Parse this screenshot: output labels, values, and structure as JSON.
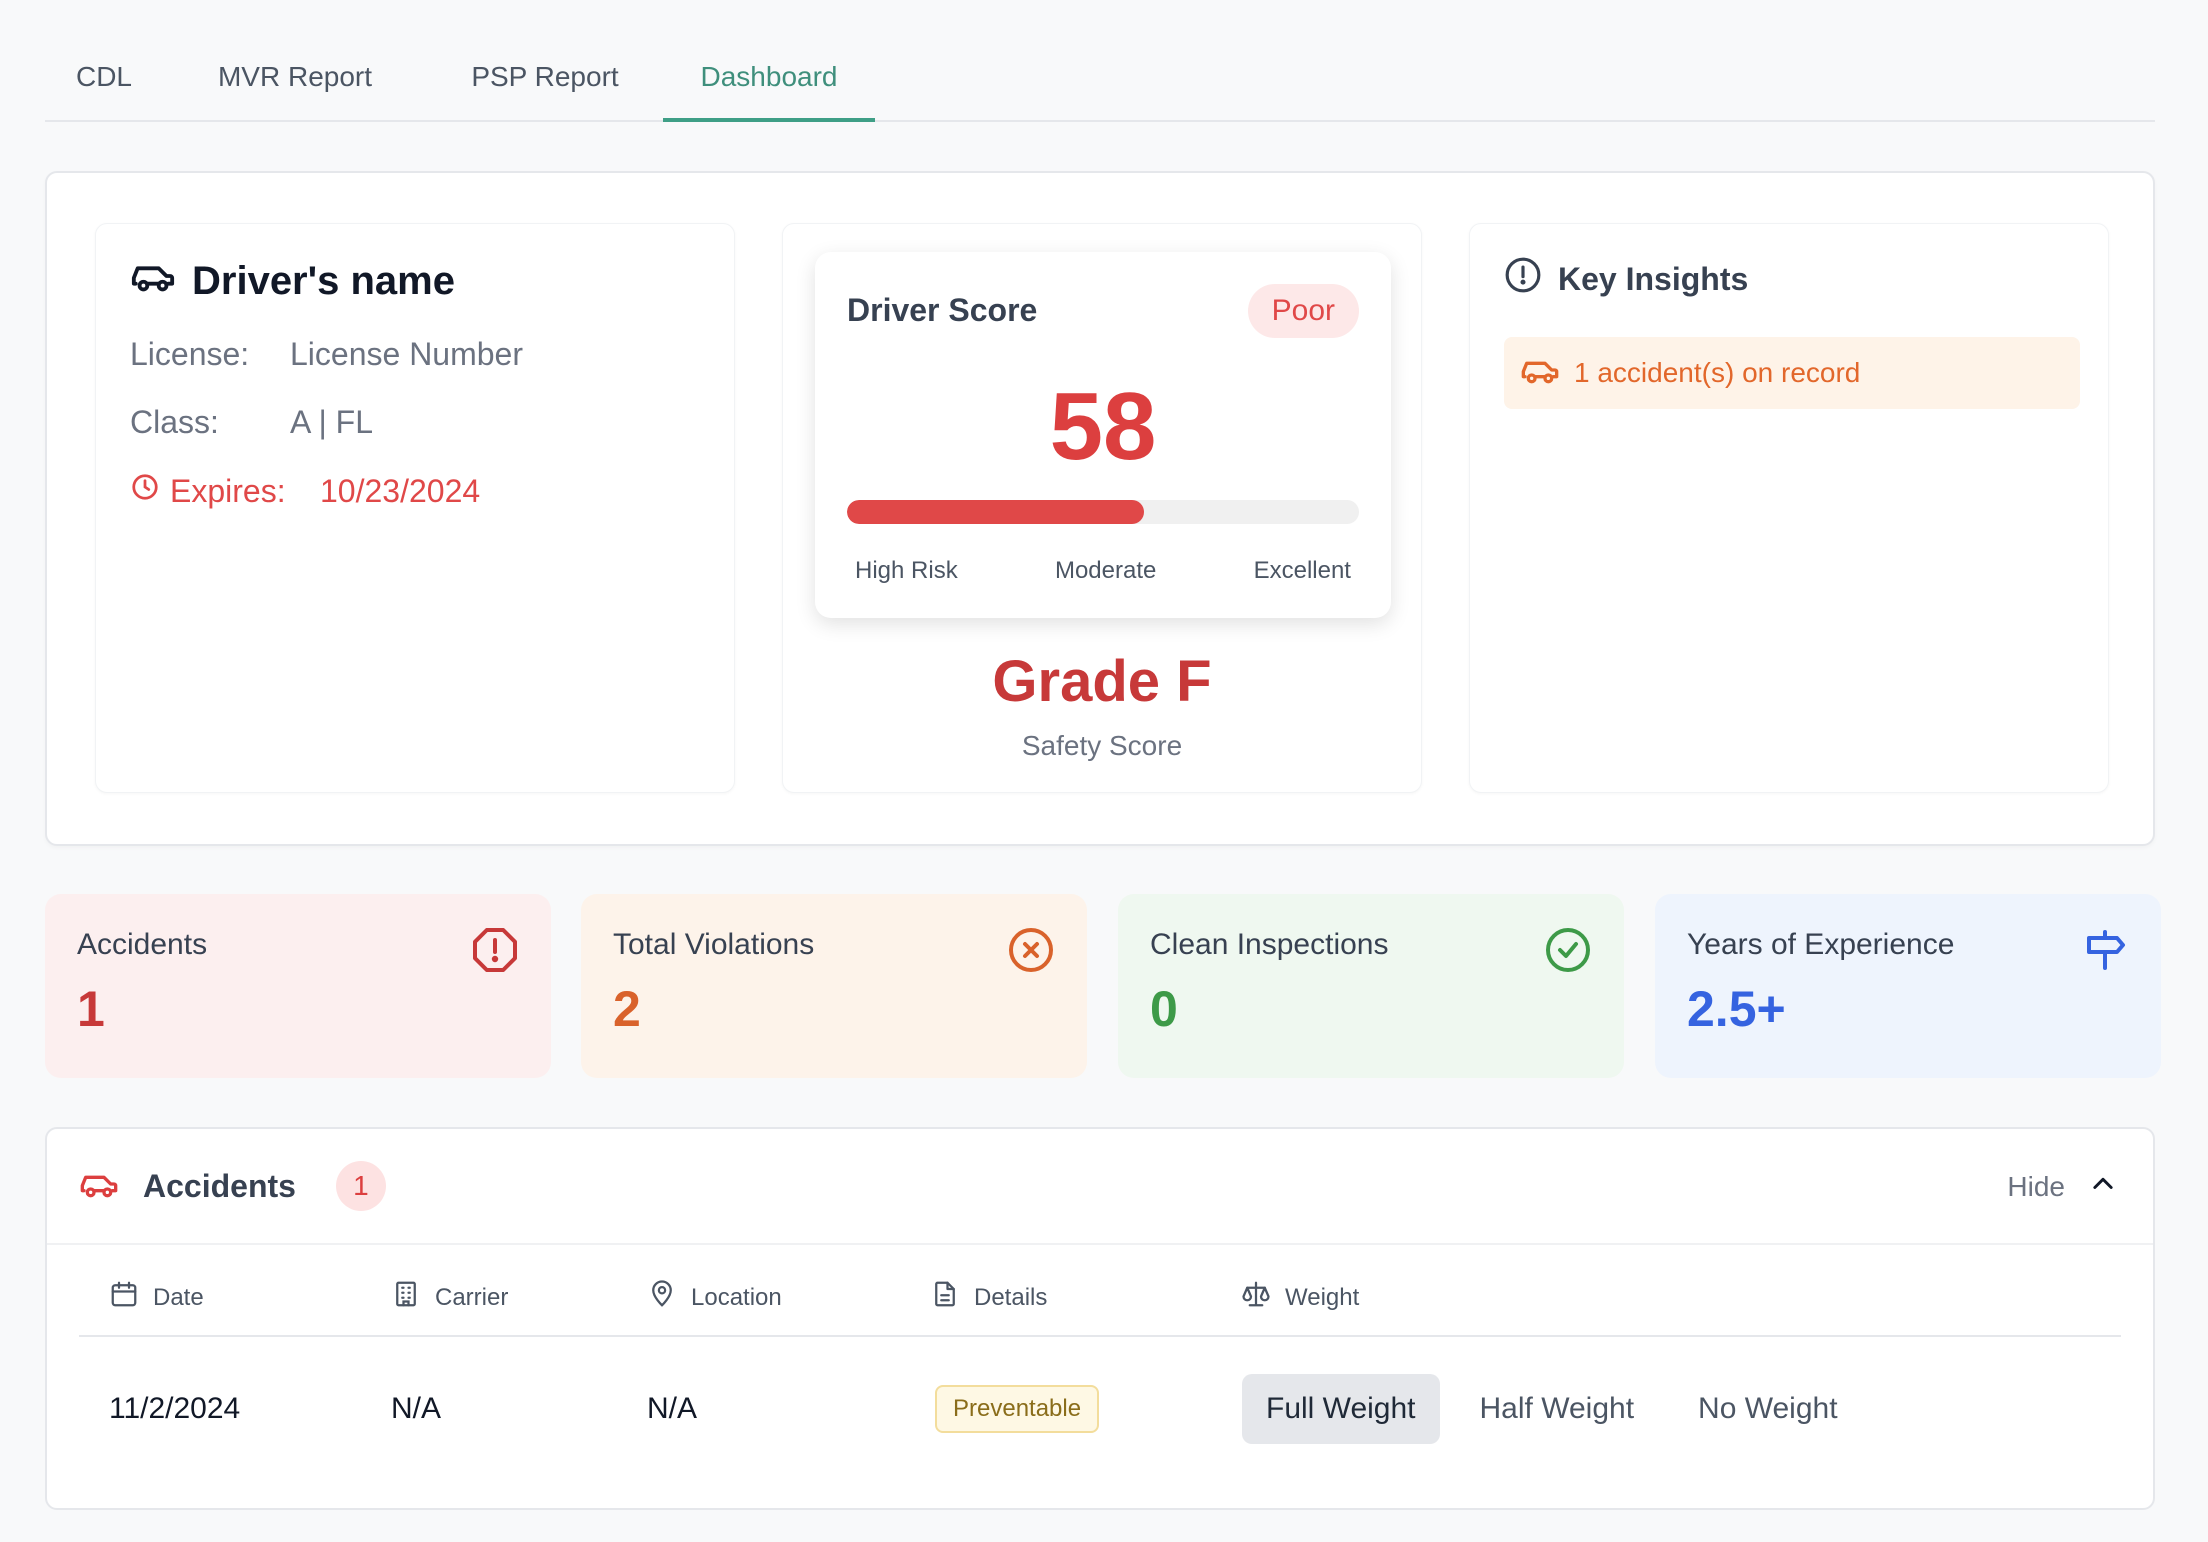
{
  "tabs": [
    {
      "label": "CDL"
    },
    {
      "label": "MVR Report"
    },
    {
      "label": "PSP Report"
    },
    {
      "label": "Dashboard"
    }
  ],
  "active_tab": "Dashboard",
  "driver": {
    "name": "Driver's name",
    "license_label": "License:",
    "license_value": "License Number",
    "class_label": "Class:",
    "class_value": "A | FL",
    "expires_label": "Expires:",
    "expires_value": "10/23/2024",
    "icon": "car-icon"
  },
  "score": {
    "title": "Driver Score",
    "badge": "Poor",
    "value": "58",
    "progress_percent": 58,
    "scale": [
      "High Risk",
      "Moderate",
      "Excellent"
    ],
    "grade": "Grade F",
    "grade_sub": "Safety Score"
  },
  "insights": {
    "title": "Key Insights",
    "items": [
      {
        "text": "1 accident(s) on record",
        "icon": "car-icon"
      }
    ]
  },
  "stats": [
    {
      "label": "Accidents",
      "value": "1",
      "icon": "alert-octagon-icon",
      "color": "#c73939"
    },
    {
      "label": "Total Violations",
      "value": "2",
      "icon": "x-circle-icon",
      "color": "#d9622b"
    },
    {
      "label": "Clean Inspections",
      "value": "0",
      "icon": "check-circle-icon",
      "color": "#3d9a48"
    },
    {
      "label": "Years of Experience",
      "value": "2.5+",
      "icon": "signpost-icon",
      "color": "#3563e0"
    }
  ],
  "accidents": {
    "title": "Accidents",
    "count": "1",
    "toggle_label": "Hide",
    "columns": [
      {
        "label": "Date",
        "icon": "calendar-icon"
      },
      {
        "label": "Carrier",
        "icon": "building-icon"
      },
      {
        "label": "Location",
        "icon": "map-pin-icon"
      },
      {
        "label": "Details",
        "icon": "file-icon"
      },
      {
        "label": "Weight",
        "icon": "scale-icon"
      }
    ],
    "rows": [
      {
        "date": "11/2/2024",
        "carrier": "N/A",
        "location": "N/A",
        "details": "Preventable",
        "weight_options": [
          "Full Weight",
          "Half Weight",
          "No Weight"
        ],
        "selected_weight": "Full Weight"
      }
    ]
  }
}
